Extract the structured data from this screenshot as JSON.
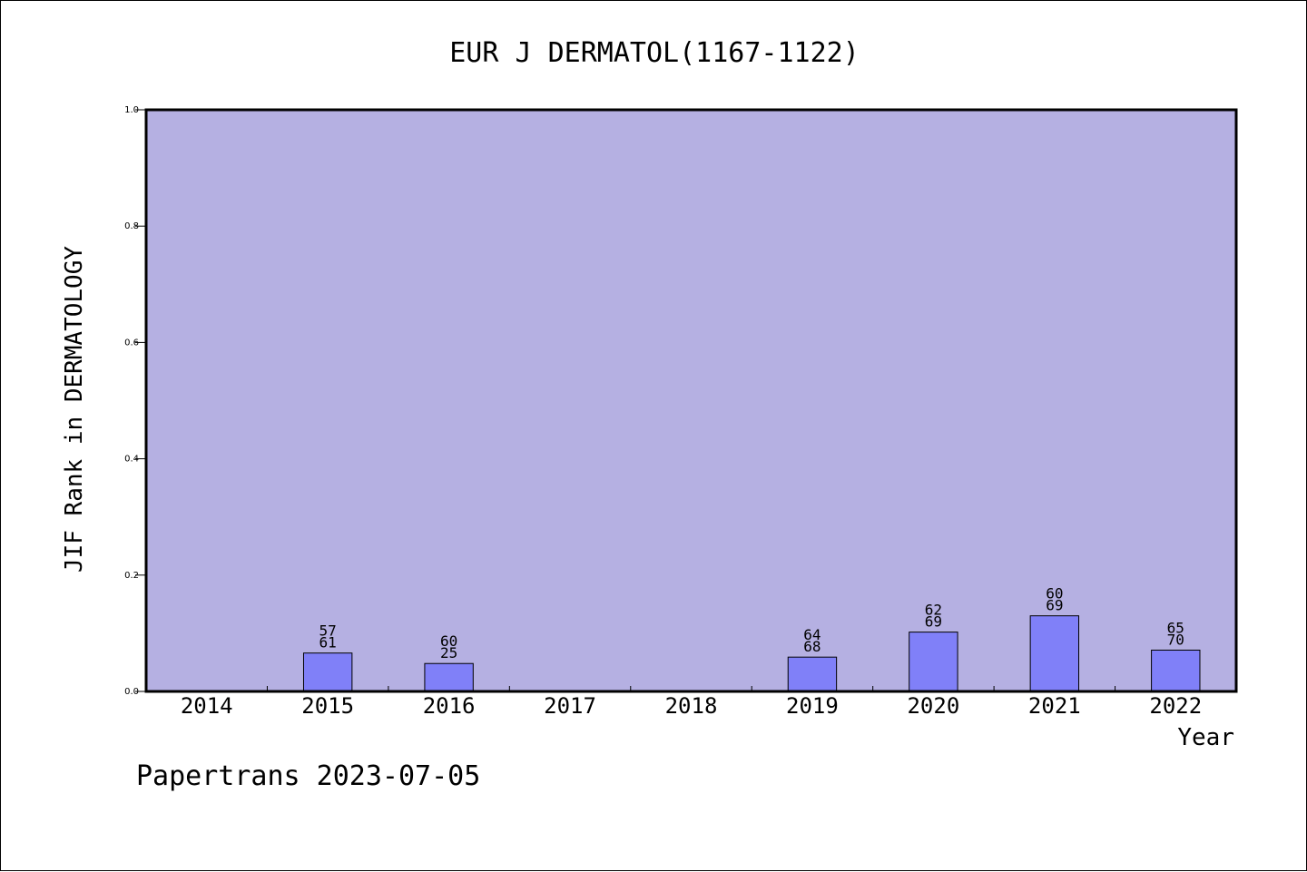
{
  "colors": {
    "plot_background": "#b5b0e2",
    "bar_fill": "#8080f8",
    "bar_stroke": "#000000",
    "axis": "#000000"
  },
  "footer": "Papertrans 2023-07-05",
  "chart_data": {
    "type": "bar",
    "title": "EUR J DERMATOL(1167-1122)",
    "xlabel": "Year",
    "ylabel": "JIF Rank in DERMATOLOGY",
    "ylim": [
      0,
      1.0
    ],
    "yticks": [
      "0.0",
      "0.2",
      "0.4",
      "0.6",
      "0.8",
      "1.0"
    ],
    "grid": false,
    "categories": [
      "2014",
      "2015",
      "2016",
      "2017",
      "2018",
      "2019",
      "2020",
      "2021",
      "2022"
    ],
    "values": [
      null,
      0.066,
      0.048,
      null,
      null,
      0.059,
      0.102,
      0.13,
      0.071
    ],
    "bar_labels": [
      [
        "",
        ""
      ],
      [
        "57",
        "61"
      ],
      [
        "60",
        "25"
      ],
      [
        "",
        ""
      ],
      [
        "",
        ""
      ],
      [
        "64",
        "68"
      ],
      [
        "62",
        "69"
      ],
      [
        "60",
        "69"
      ],
      [
        "65",
        "70"
      ]
    ]
  }
}
